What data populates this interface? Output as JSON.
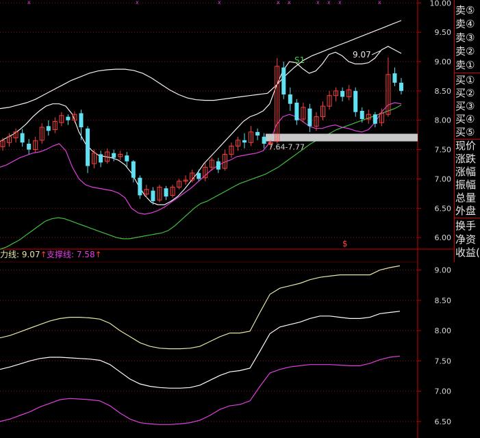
{
  "side_panel": {
    "sell": [
      "卖⑤",
      "卖④",
      "卖③",
      "卖②",
      "卖①"
    ],
    "buy": [
      "买①",
      "买②",
      "买③",
      "买④",
      "买⑤"
    ],
    "quote": [
      "现价",
      "涨跌",
      "涨幅",
      "振幅",
      "总量",
      "外盘"
    ],
    "extra": [
      "换手",
      "净资",
      "收益("
    ]
  },
  "indicator_labels": {
    "resistance_text": "力线: 9.07",
    "support_text": "支撑线: 7.58",
    "arrow": "↑"
  },
  "colors": {
    "resistance": "#e8e8a8",
    "support": "#e040e0",
    "up_candle": "#ff4040",
    "down_candle": "#60e0f0",
    "grid": "#8a1a1a",
    "axis_text": "#d8d8d8",
    "green_line": "#40c040",
    "band_line": "#f2f2f2",
    "zone_box": "#c8c8c8"
  },
  "chart_data": [
    {
      "type": "candlestick",
      "ylim": [
        5.85,
        10.05
      ],
      "y_ticks": [
        "10.00",
        "9.50",
        "9.00",
        "8.50",
        "8.00",
        "7.50",
        "7.00",
        "6.50",
        "6.00"
      ],
      "annotations": {
        "peak_label": "9.07",
        "s1_label": "S1",
        "zone_label": "7.64-7.77",
        "marker": "$",
        "top_marks": "x"
      },
      "zone": [
        7.64,
        7.77
      ],
      "upper_band": [
        8.2,
        8.22,
        8.26,
        8.3,
        8.36,
        8.44,
        8.52,
        8.6,
        8.68,
        8.74,
        8.8,
        8.84,
        8.86,
        8.87,
        8.87,
        8.85,
        8.8,
        8.72,
        8.62,
        8.52,
        8.44,
        8.38,
        8.35,
        8.34,
        8.34,
        8.36,
        8.38,
        8.4,
        8.42,
        8.44,
        8.46,
        8.6,
        8.76,
        8.9,
        9.02,
        9.1,
        9.16,
        9.22,
        9.28,
        9.34,
        9.4,
        9.46,
        9.52,
        9.58,
        9.64,
        9.7
      ],
      "green_line": [
        5.8,
        5.84,
        5.9,
        5.96,
        6.04,
        6.12,
        6.2,
        6.28,
        6.32,
        6.34,
        6.32,
        6.28,
        6.24,
        6.2,
        6.16,
        6.12,
        6.08,
        6.04,
        6.0,
        5.98,
        5.98,
        6.0,
        6.02,
        6.04,
        6.06,
        6.08,
        6.12,
        6.2,
        6.3,
        6.4,
        6.5,
        6.58,
        6.62,
        6.68,
        6.74,
        6.8,
        6.86,
        6.92,
        6.96,
        7.0,
        7.04,
        7.08,
        7.14,
        7.2,
        7.28,
        7.36,
        7.44,
        7.52,
        7.6,
        7.66,
        7.72,
        7.78,
        7.84,
        7.88,
        7.92,
        7.96,
        8.0,
        8.04,
        8.08,
        8.12,
        8.16,
        8.2,
        8.26
      ],
      "upper_env": [
        7.64,
        7.7,
        7.76,
        7.84,
        7.94,
        8.06,
        8.16,
        8.24,
        8.28,
        8.28,
        8.24,
        8.1,
        7.8,
        7.6,
        7.48,
        7.4,
        7.38,
        7.36,
        7.32,
        7.24,
        7.1,
        6.9,
        6.72,
        6.6,
        6.56,
        6.56,
        6.62,
        6.7,
        6.82,
        6.96,
        7.1,
        7.26,
        7.38,
        7.5,
        7.62,
        7.74,
        7.86,
        7.98,
        8.06,
        8.1,
        8.16,
        8.28,
        8.58,
        8.84,
        9.0,
        8.98,
        8.88,
        8.8,
        8.84,
        8.96,
        9.12,
        9.16,
        9.1,
        9.0,
        8.96,
        8.96,
        8.98,
        9.06,
        9.2,
        9.26,
        9.2,
        9.14
      ],
      "lower_env": [
        7.2,
        7.24,
        7.3,
        7.36,
        7.4,
        7.44,
        7.46,
        7.5,
        7.56,
        7.6,
        7.48,
        7.2,
        7.0,
        6.9,
        6.86,
        6.84,
        6.82,
        6.8,
        6.76,
        6.68,
        6.5,
        6.42,
        6.4,
        6.42,
        6.46,
        6.52,
        6.6,
        6.68,
        6.76,
        6.84,
        6.94,
        7.04,
        7.14,
        7.22,
        7.28,
        7.32,
        7.38,
        7.4,
        7.42,
        7.44,
        7.48,
        7.62,
        7.92,
        8.06,
        8.1,
        8.06,
        7.98,
        7.9,
        7.86,
        7.86,
        7.9,
        7.92,
        7.88,
        7.86,
        7.82,
        7.8,
        7.84,
        7.96,
        8.14,
        8.26,
        8.3,
        8.28
      ],
      "candles": [
        [
          7.55,
          7.65,
          7.48,
          7.7
        ],
        [
          7.62,
          7.72,
          7.55,
          7.78
        ],
        [
          7.7,
          7.8,
          7.62,
          7.86
        ],
        [
          7.78,
          7.62,
          7.55,
          7.85
        ],
        [
          7.6,
          7.5,
          7.42,
          7.68
        ],
        [
          7.5,
          7.65,
          7.45,
          7.72
        ],
        [
          7.66,
          7.88,
          7.6,
          7.95
        ],
        [
          7.9,
          7.82,
          7.74,
          8.0
        ],
        [
          7.84,
          7.98,
          7.78,
          8.05
        ],
        [
          7.96,
          8.08,
          7.9,
          8.14
        ],
        [
          8.06,
          8.0,
          7.92,
          8.1
        ],
        [
          8.0,
          8.1,
          7.96,
          8.15
        ],
        [
          8.12,
          7.88,
          7.66,
          8.18
        ],
        [
          7.86,
          7.22,
          7.1,
          7.9
        ],
        [
          7.26,
          7.44,
          7.18,
          7.5
        ],
        [
          7.42,
          7.28,
          7.2,
          7.48
        ],
        [
          7.3,
          7.46,
          7.26,
          7.52
        ],
        [
          7.44,
          7.36,
          7.3,
          7.5
        ],
        [
          7.38,
          7.42,
          7.32,
          7.48
        ],
        [
          7.4,
          7.3,
          7.2,
          7.46
        ],
        [
          7.3,
          7.02,
          6.94,
          7.32
        ],
        [
          7.02,
          6.72,
          6.66,
          7.06
        ],
        [
          6.74,
          6.82,
          6.68,
          6.9
        ],
        [
          6.8,
          6.62,
          6.56,
          6.86
        ],
        [
          6.64,
          6.86,
          6.6,
          6.9
        ],
        [
          6.84,
          6.7,
          6.64,
          6.88
        ],
        [
          6.72,
          6.86,
          6.68,
          6.9
        ],
        [
          6.86,
          6.96,
          6.82,
          7.0
        ],
        [
          6.96,
          6.98,
          6.9,
          7.06
        ],
        [
          6.98,
          7.1,
          6.94,
          7.16
        ],
        [
          7.1,
          7.0,
          6.96,
          7.16
        ],
        [
          7.02,
          7.2,
          6.96,
          7.28
        ],
        [
          7.2,
          7.32,
          7.14,
          7.36
        ],
        [
          7.3,
          7.16,
          7.1,
          7.36
        ],
        [
          7.18,
          7.42,
          7.14,
          7.5
        ],
        [
          7.42,
          7.56,
          7.36,
          7.62
        ],
        [
          7.56,
          7.66,
          7.48,
          7.72
        ],
        [
          7.66,
          7.62,
          7.52,
          7.78
        ],
        [
          7.62,
          7.8,
          7.56,
          7.9
        ],
        [
          7.8,
          7.74,
          7.66,
          7.86
        ],
        [
          7.72,
          7.6,
          7.52,
          7.78
        ],
        [
          7.6,
          7.62,
          7.54,
          7.66
        ],
        [
          7.64,
          8.92,
          7.6,
          9.06
        ],
        [
          8.9,
          8.44,
          8.36,
          9.0
        ],
        [
          8.44,
          8.28,
          8.16,
          8.56
        ],
        [
          8.3,
          8.0,
          7.92,
          8.36
        ],
        [
          8.02,
          8.22,
          7.96,
          8.3
        ],
        [
          8.2,
          7.9,
          7.8,
          8.28
        ],
        [
          7.9,
          8.06,
          7.82,
          8.14
        ],
        [
          8.06,
          8.24,
          8.0,
          8.32
        ],
        [
          8.24,
          8.42,
          8.18,
          8.5
        ],
        [
          8.42,
          8.5,
          8.32,
          8.56
        ],
        [
          8.5,
          8.4,
          8.32,
          8.56
        ],
        [
          8.4,
          8.52,
          8.34,
          8.6
        ],
        [
          8.5,
          8.14,
          8.06,
          8.56
        ],
        [
          8.16,
          8.02,
          7.96,
          8.22
        ],
        [
          8.02,
          8.1,
          7.94,
          8.18
        ],
        [
          8.1,
          7.94,
          7.88,
          8.14
        ],
        [
          7.96,
          8.12,
          7.9,
          8.2
        ],
        [
          8.1,
          8.78,
          8.06,
          9.07
        ],
        [
          8.8,
          8.64,
          8.58,
          8.9
        ],
        [
          8.64,
          8.5,
          8.44,
          8.72
        ]
      ]
    },
    {
      "type": "line",
      "ylim": [
        6.25,
        9.3
      ],
      "y_ticks": [
        "9.00",
        "8.50",
        "8.00",
        "7.50",
        "7.00",
        "6.50"
      ],
      "series": [
        {
          "name": "力线",
          "values": [
            7.88,
            7.92,
            7.98,
            8.04,
            8.1,
            8.16,
            8.2,
            8.22,
            8.22,
            8.21,
            8.19,
            8.12,
            8.0,
            7.9,
            7.8,
            7.74,
            7.71,
            7.7,
            7.7,
            7.71,
            7.74,
            7.82,
            7.9,
            7.96,
            7.96,
            7.99,
            8.3,
            8.6,
            8.7,
            8.74,
            8.78,
            8.84,
            8.88,
            8.9,
            8.92,
            8.92,
            8.92,
            8.92,
            9.0,
            9.04,
            9.07
          ]
        },
        {
          "name": "",
          "values": [
            7.36,
            7.4,
            7.45,
            7.5,
            7.54,
            7.56,
            7.56,
            7.55,
            7.54,
            7.53,
            7.51,
            7.44,
            7.32,
            7.2,
            7.12,
            7.08,
            7.06,
            7.05,
            7.05,
            7.06,
            7.1,
            7.18,
            7.26,
            7.32,
            7.34,
            7.38,
            7.66,
            7.95,
            8.06,
            8.1,
            8.14,
            8.2,
            8.24,
            8.24,
            8.22,
            8.2,
            8.2,
            8.22,
            8.28,
            8.3,
            8.32
          ]
        },
        {
          "name": "支撑线",
          "values": [
            6.5,
            6.54,
            6.6,
            6.66,
            6.74,
            6.8,
            6.86,
            6.88,
            6.87,
            6.86,
            6.84,
            6.76,
            6.64,
            6.54,
            6.48,
            6.46,
            6.45,
            6.45,
            6.46,
            6.48,
            6.52,
            6.6,
            6.7,
            6.76,
            6.78,
            6.84,
            7.08,
            7.3,
            7.36,
            7.4,
            7.42,
            7.44,
            7.44,
            7.44,
            7.43,
            7.42,
            7.42,
            7.46,
            7.52,
            7.56,
            7.58
          ]
        }
      ]
    }
  ]
}
